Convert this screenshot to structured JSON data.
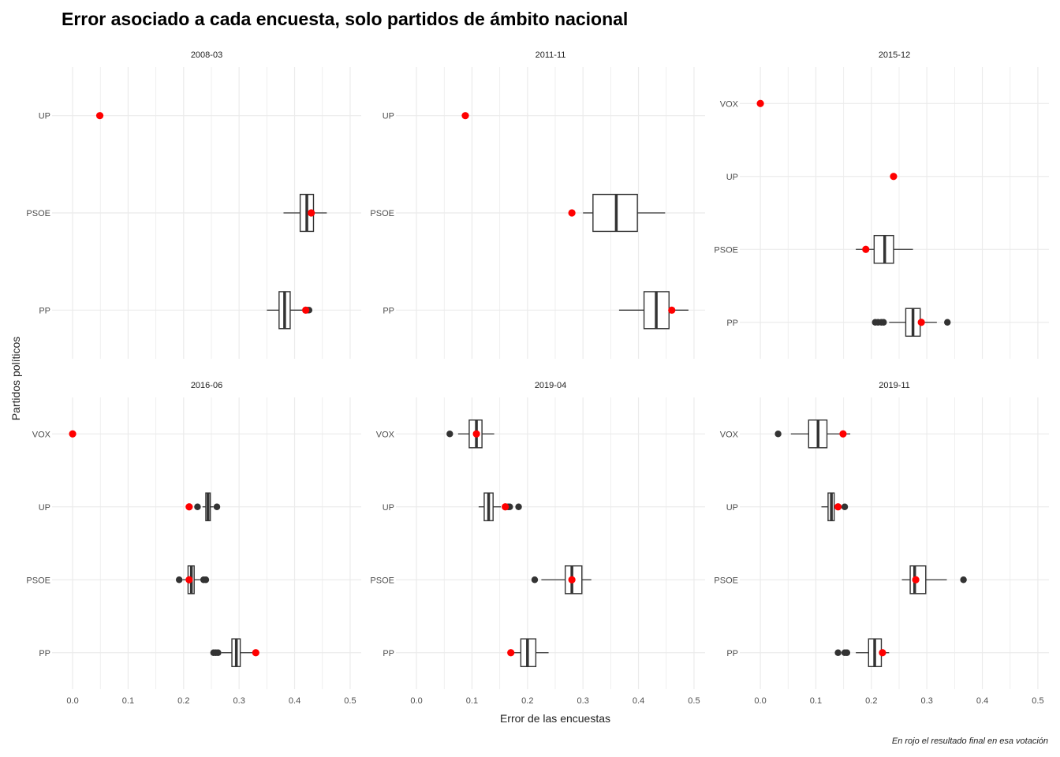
{
  "chart_data": {
    "type": "boxplot",
    "title": "Error asociado a cada encuesta, solo partidos de ámbito nacional",
    "xlabel": "Error de las encuestas",
    "ylabel": "Partidos políticos",
    "caption": "En rojo el resultado final en esa votación",
    "x_ticks": [
      "0.0",
      "0.1",
      "0.2",
      "0.3",
      "0.4",
      "0.5"
    ],
    "xlim": [
      -0.02,
      0.52
    ],
    "grid": true,
    "colors": {
      "box": "#333333",
      "result": "#ff0000",
      "outlier": "#333333",
      "grid": "#ebebeb"
    },
    "panels": [
      {
        "label": "2008-03",
        "parties": [
          {
            "name": "UP",
            "result": 0.049,
            "box": null,
            "outliers": []
          },
          {
            "name": "PSOE",
            "result": 0.43,
            "box": {
              "wmin": 0.38,
              "q1": 0.41,
              "median": 0.422,
              "q3": 0.434,
              "wmax": 0.458
            },
            "outliers": []
          },
          {
            "name": "PP",
            "result": 0.42,
            "box": {
              "wmin": 0.35,
              "q1": 0.372,
              "median": 0.382,
              "q3": 0.392,
              "wmax": 0.415
            },
            "outliers": [
              0.423,
              0.426
            ]
          }
        ]
      },
      {
        "label": "2011-11",
        "parties": [
          {
            "name": "UP",
            "result": 0.088,
            "box": null,
            "outliers": []
          },
          {
            "name": "PSOE",
            "result": 0.28,
            "box": {
              "wmin": 0.3,
              "q1": 0.318,
              "median": 0.36,
              "q3": 0.398,
              "wmax": 0.448
            },
            "outliers": []
          },
          {
            "name": "PP",
            "result": 0.46,
            "box": {
              "wmin": 0.365,
              "q1": 0.41,
              "median": 0.432,
              "q3": 0.455,
              "wmax": 0.49
            },
            "outliers": []
          }
        ]
      },
      {
        "label": "2015-12",
        "parties": [
          {
            "name": "VOX",
            "result": 0.0,
            "box": null,
            "outliers": []
          },
          {
            "name": "UP",
            "result": 0.24,
            "box": null,
            "outliers": []
          },
          {
            "name": "PSOE",
            "result": 0.19,
            "box": {
              "wmin": 0.172,
              "q1": 0.205,
              "median": 0.224,
              "q3": 0.24,
              "wmax": 0.275
            },
            "outliers": []
          },
          {
            "name": "PP",
            "result": 0.29,
            "box": {
              "wmin": 0.232,
              "q1": 0.262,
              "median": 0.275,
              "q3": 0.288,
              "wmax": 0.318
            },
            "outliers": [
              0.207,
              0.212,
              0.218,
              0.222,
              0.337
            ]
          }
        ]
      },
      {
        "label": "2016-06",
        "parties": [
          {
            "name": "VOX",
            "result": 0.0,
            "box": null,
            "outliers": []
          },
          {
            "name": "UP",
            "result": 0.21,
            "box": {
              "wmin": 0.234,
              "q1": 0.24,
              "median": 0.244,
              "q3": 0.248,
              "wmax": 0.254
            },
            "outliers": [
              0.225,
              0.26
            ]
          },
          {
            "name": "PSOE",
            "result": 0.21,
            "box": {
              "wmin": 0.198,
              "q1": 0.208,
              "median": 0.214,
              "q3": 0.219,
              "wmax": 0.23
            },
            "outliers": [
              0.192,
              0.236,
              0.24
            ]
          },
          {
            "name": "PP",
            "result": 0.33,
            "box": {
              "wmin": 0.268,
              "q1": 0.287,
              "median": 0.295,
              "q3": 0.302,
              "wmax": 0.325
            },
            "outliers": [
              0.254,
              0.258,
              0.262
            ]
          }
        ]
      },
      {
        "label": "2019-04",
        "parties": [
          {
            "name": "VOX",
            "result": 0.108,
            "box": {
              "wmin": 0.075,
              "q1": 0.095,
              "median": 0.108,
              "q3": 0.118,
              "wmax": 0.14
            },
            "outliers": [
              0.06
            ]
          },
          {
            "name": "UP",
            "result": 0.16,
            "box": {
              "wmin": 0.112,
              "q1": 0.122,
              "median": 0.13,
              "q3": 0.138,
              "wmax": 0.152
            },
            "outliers": [
              0.165,
              0.168,
              0.184
            ]
          },
          {
            "name": "PSOE",
            "result": 0.28,
            "box": {
              "wmin": 0.225,
              "q1": 0.268,
              "median": 0.28,
              "q3": 0.298,
              "wmax": 0.315
            },
            "outliers": [
              0.213
            ]
          },
          {
            "name": "PP",
            "result": 0.17,
            "box": {
              "wmin": 0.175,
              "q1": 0.188,
              "median": 0.2,
              "q3": 0.215,
              "wmax": 0.238
            },
            "outliers": []
          }
        ]
      },
      {
        "label": "2019-11",
        "parties": [
          {
            "name": "VOX",
            "result": 0.149,
            "box": {
              "wmin": 0.055,
              "q1": 0.087,
              "median": 0.104,
              "q3": 0.12,
              "wmax": 0.162
            },
            "outliers": [
              0.032
            ]
          },
          {
            "name": "UP",
            "result": 0.14,
            "box": {
              "wmin": 0.11,
              "q1": 0.122,
              "median": 0.128,
              "q3": 0.133,
              "wmax": 0.144
            },
            "outliers": [
              0.152
            ]
          },
          {
            "name": "PSOE",
            "result": 0.28,
            "box": {
              "wmin": 0.255,
              "q1": 0.27,
              "median": 0.278,
              "q3": 0.298,
              "wmax": 0.336
            },
            "outliers": [
              0.366
            ]
          },
          {
            "name": "PP",
            "result": 0.22,
            "box": {
              "wmin": 0.172,
              "q1": 0.195,
              "median": 0.206,
              "q3": 0.218,
              "wmax": 0.232
            },
            "outliers": [
              0.14,
              0.152,
              0.156
            ]
          }
        ]
      }
    ]
  }
}
